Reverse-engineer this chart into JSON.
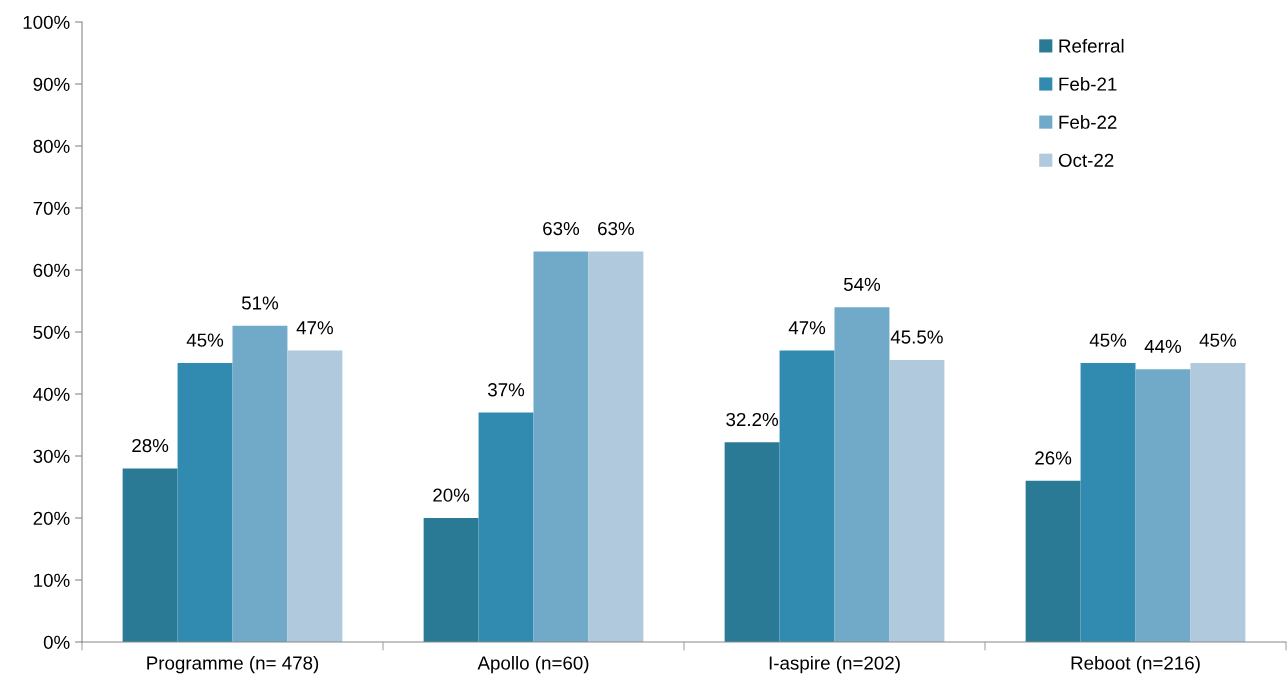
{
  "chart_data": {
    "type": "bar",
    "categories": [
      "Programme (n= 478)",
      "Apollo (n=60)",
      "I-aspire (n=202)",
      "Reboot (n=216)"
    ],
    "series": [
      {
        "name": "Referral",
        "color": "#2a7a96",
        "values": [
          28,
          20,
          32.2,
          26
        ],
        "value_labels": [
          "28%",
          "20%",
          "32.2%",
          "26%"
        ]
      },
      {
        "name": "Feb-21",
        "color": "#318bb0",
        "values": [
          45,
          37,
          47,
          45
        ],
        "value_labels": [
          "45%",
          "37%",
          "47%",
          "45%"
        ]
      },
      {
        "name": "Feb-22",
        "color": "#71a9c9",
        "values": [
          51,
          63,
          54,
          44
        ],
        "value_labels": [
          "51%",
          "63%",
          "54%",
          "44%"
        ]
      },
      {
        "name": "Oct-22",
        "color": "#b0c9dc",
        "values": [
          47,
          63,
          45.5,
          45
        ],
        "value_labels": [
          "47%",
          "63%",
          "45.5%",
          "45%"
        ]
      }
    ],
    "ylim": [
      0,
      100
    ],
    "yticks": [
      {
        "value": 0,
        "label": "0%"
      },
      {
        "value": 10,
        "label": "10%"
      },
      {
        "value": 20,
        "label": "20%"
      },
      {
        "value": 30,
        "label": "30%"
      },
      {
        "value": 40,
        "label": "40%"
      },
      {
        "value": 50,
        "label": "50%"
      },
      {
        "value": 60,
        "label": "60%"
      },
      {
        "value": 70,
        "label": "70%"
      },
      {
        "value": 80,
        "label": "80%"
      },
      {
        "value": 90,
        "label": "90%"
      },
      {
        "value": 100,
        "label": "100%"
      }
    ],
    "grid": false,
    "legend": "top right"
  }
}
